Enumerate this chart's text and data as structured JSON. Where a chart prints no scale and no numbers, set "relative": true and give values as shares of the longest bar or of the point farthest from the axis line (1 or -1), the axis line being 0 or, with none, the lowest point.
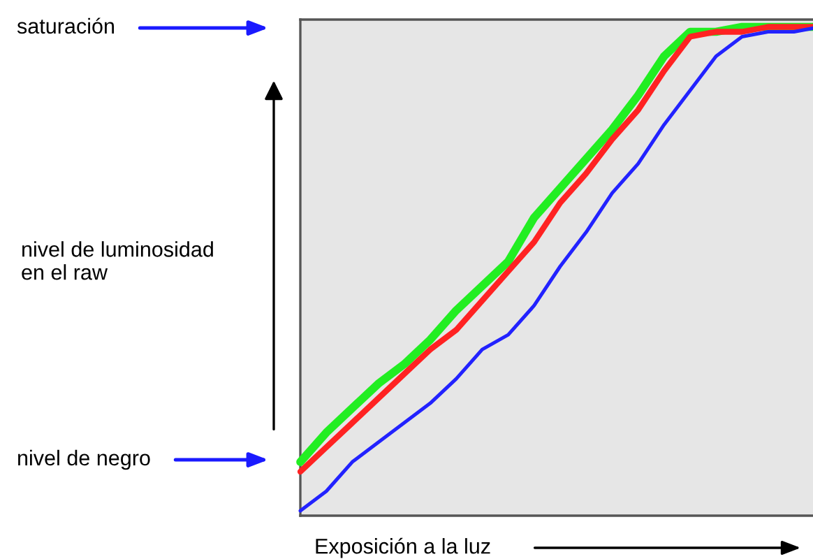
{
  "chart_data": {
    "type": "line",
    "relative": true,
    "tick_labels": false,
    "xlabel": "Exposición a la luz",
    "ylabel": "nivel de luminosidad\nen el raw",
    "annotations": [
      "saturación",
      "nivel de negro"
    ],
    "categories": [
      null,
      null,
      null,
      null,
      null,
      null,
      null,
      null,
      null,
      null,
      null,
      null,
      null,
      null,
      null,
      null,
      null,
      null,
      null,
      null,
      null
    ],
    "series": [
      {
        "color": "#22ee22",
        "values": [
          0.11,
          0.17,
          0.22,
          0.27,
          0.31,
          0.36,
          0.42,
          0.47,
          0.52,
          0.61,
          0.67,
          0.73,
          0.79,
          0.86,
          0.94,
          0.99,
          0.99,
          1,
          1,
          1,
          1
        ]
      },
      {
        "color": "#ff2222",
        "values": [
          0.09,
          0.14,
          0.19,
          0.24,
          0.29,
          0.34,
          0.38,
          0.44,
          0.5,
          0.56,
          0.64,
          0.7,
          0.77,
          0.83,
          0.91,
          0.98,
          0.99,
          0.99,
          1,
          1,
          1
        ]
      },
      {
        "color": "#2222ff",
        "values": [
          0.01,
          0.05,
          0.11,
          0.15,
          0.19,
          0.23,
          0.28,
          0.34,
          0.37,
          0.43,
          0.51,
          0.58,
          0.66,
          0.72,
          0.8,
          0.87,
          0.94,
          0.98,
          0.99,
          0.99,
          1
        ]
      }
    ]
  }
}
